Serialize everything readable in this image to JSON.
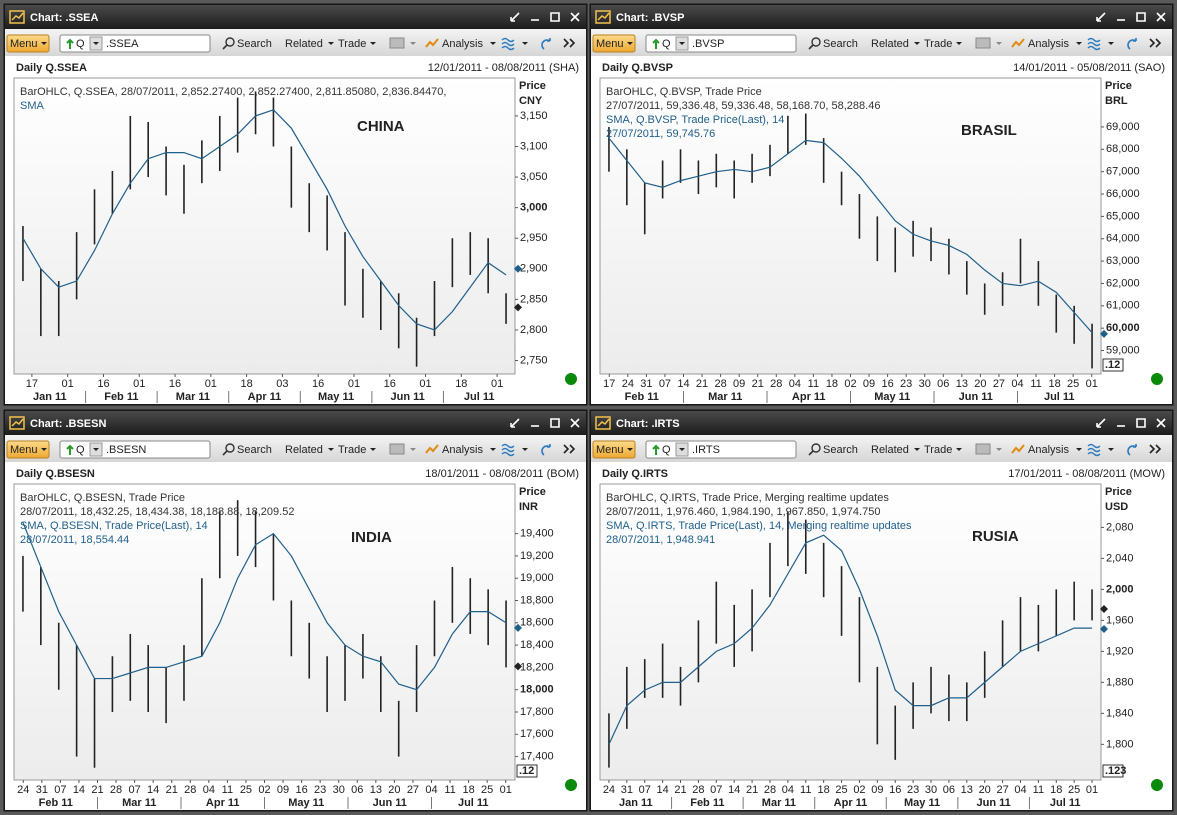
{
  "windows": [
    {
      "title": "Chart: .SSEA",
      "toolbar": {
        "menu": "Menu",
        "q": "Q",
        "symbol": ".SSEA",
        "search": "Search",
        "related": "Related",
        "trade": "Trade",
        "analysis": "Analysis"
      },
      "header": {
        "name": "Daily Q.SSEA",
        "range": "12/01/2011 - 08/08/2011 (SHA)"
      },
      "legend": [
        {
          "text": "BarOHLC, Q.SSEA, 28/07/2011, 2,852.27400, 2,852.27400, 2,811.85080, 2,836.84470,",
          "color": "#333333"
        },
        {
          "text": "SMA",
          "color": "#1f5f8a"
        }
      ],
      "annotation": "CHINA",
      "chart": {
        "type": "ohlc",
        "y_title": "Price",
        "currency": "CNY",
        "ylim": [
          2728,
          3212
        ],
        "yticks": [
          {
            "value": 2750,
            "label": "2,750"
          },
          {
            "value": 2800,
            "label": "2,800"
          },
          {
            "value": 2850,
            "label": "2,850"
          },
          {
            "value": 2900,
            "label": "2,900"
          },
          {
            "value": 2950,
            "label": "2,950"
          },
          {
            "value": 3000,
            "label": "3,000",
            "bold": true
          },
          {
            "value": 3050,
            "label": "3,050"
          },
          {
            "value": 3100,
            "label": "3,100"
          },
          {
            "value": 3150,
            "label": "3,150"
          }
        ],
        "day_labels": [
          "17",
          "01",
          "16",
          "01",
          "16",
          "01",
          "18",
          "03",
          "16",
          "01",
          "16",
          "01",
          "18",
          "01"
        ],
        "month_labels": [
          "Jan 11",
          "Feb 11",
          "Mar 11",
          "Apr 11",
          "May 11",
          "Jun 11",
          "Jul 11"
        ],
        "high": [
          2970,
          2900,
          2880,
          2960,
          3030,
          3060,
          3150,
          3140,
          3100,
          3070,
          3110,
          3150,
          3180,
          3190,
          3180,
          3100,
          3040,
          3020,
          2960,
          2900,
          2880,
          2860,
          2820,
          2880,
          2950,
          2960,
          2950,
          2860
        ],
        "low": [
          2880,
          2790,
          2790,
          2850,
          2940,
          2990,
          3030,
          3050,
          3020,
          2990,
          3040,
          3060,
          3090,
          3120,
          3100,
          3000,
          2960,
          2930,
          2840,
          2820,
          2800,
          2770,
          2740,
          2790,
          2870,
          2890,
          2860,
          2810
        ],
        "sma": [
          2950,
          2900,
          2870,
          2880,
          2930,
          2990,
          3040,
          3080,
          3090,
          3090,
          3080,
          3100,
          3120,
          3150,
          3160,
          3130,
          3080,
          3030,
          2970,
          2920,
          2880,
          2840,
          2810,
          2800,
          2830,
          2870,
          2910,
          2890
        ],
        "bar_color": "#222222",
        "sma_color": "#1f5f8a",
        "markers": [
          {
            "value": 2900,
            "color": "#1f5f8a"
          },
          {
            "value": 2836.8447,
            "color": "#222222"
          }
        ]
      }
    },
    {
      "title": "Chart: .BVSP",
      "toolbar": {
        "menu": "Menu",
        "q": "Q",
        "symbol": ".BVSP",
        "search": "Search",
        "related": "Related",
        "trade": "Trade",
        "analysis": "Analysis"
      },
      "header": {
        "name": "Daily Q.BVSP",
        "range": "14/01/2011 - 05/08/2011 (SAO)"
      },
      "legend": [
        {
          "text": "BarOHLC, Q.BVSP, Trade Price",
          "color": "#333333"
        },
        {
          "text": "27/07/2011, 59,336.48, 59,336.48, 58,168.70, 58,288.46",
          "color": "#333333"
        },
        {
          "text": "SMA, Q.BVSP, Trade Price(Last),  14",
          "color": "#1f5f8a"
        },
        {
          "text": "27/07/2011, 59,745.76",
          "color": "#1f5f8a"
        }
      ],
      "annotation": "BRASIL",
      "chart": {
        "type": "ohlc",
        "y_title": "Price",
        "currency": "BRL",
        "ylim": [
          57950,
          71190
        ],
        "yticks": [
          {
            "value": 59000,
            "label": "59,000"
          },
          {
            "value": 60000,
            "label": "60,000",
            "bold": true
          },
          {
            "value": 61000,
            "label": "61,000"
          },
          {
            "value": 62000,
            "label": "62,000"
          },
          {
            "value": 63000,
            "label": "63,000"
          },
          {
            "value": 64000,
            "label": "64,000"
          },
          {
            "value": 65000,
            "label": "65,000"
          },
          {
            "value": 66000,
            "label": "66,000"
          },
          {
            "value": 67000,
            "label": "67,000"
          },
          {
            "value": 68000,
            "label": "68,000"
          },
          {
            "value": 69000,
            "label": "69,000"
          }
        ],
        "day_labels": [
          "17",
          "24",
          "31",
          "07",
          "14",
          "21",
          "28",
          "09",
          "21",
          "28",
          "04",
          "11",
          "18",
          "02",
          "09",
          "16",
          "23",
          "30",
          "06",
          "13",
          "20",
          "27",
          "04",
          "11",
          "18",
          "25",
          "01"
        ],
        "month_labels": [
          "Feb 11",
          "Mar 11",
          "Apr 11",
          "May 11",
          "Jun 11",
          "Jul 11"
        ],
        "high": [
          69000,
          68000,
          66500,
          67500,
          68000,
          67500,
          67800,
          67500,
          67800,
          68200,
          69500,
          69600,
          68500,
          67000,
          66000,
          65000,
          64500,
          64800,
          64500,
          64000,
          63000,
          62000,
          62500,
          64000,
          63000,
          61500,
          61000,
          60200
        ],
        "low": [
          67000,
          65500,
          64200,
          65800,
          66500,
          66000,
          66300,
          65800,
          66500,
          66800,
          67800,
          68200,
          66500,
          65500,
          64000,
          63000,
          62500,
          63200,
          63000,
          62400,
          61500,
          60600,
          61000,
          62000,
          61000,
          59800,
          59300,
          58200
        ],
        "sma": [
          68500,
          67500,
          66500,
          66300,
          66600,
          66800,
          67000,
          67100,
          67000,
          67200,
          67800,
          68400,
          68300,
          67600,
          66800,
          65800,
          64800,
          64200,
          63900,
          63700,
          63300,
          62600,
          62000,
          61900,
          62100,
          61600,
          60700,
          59800
        ],
        "bar_color": "#222222",
        "sma_color": "#1f5f8a",
        "markers": [
          {
            "value": 59745.76,
            "color": "#1f5f8a"
          }
        ],
        "last_label": ".12"
      }
    },
    {
      "title": "Chart: .BSESN",
      "toolbar": {
        "menu": "Menu",
        "q": "Q",
        "symbol": ".BSESN",
        "search": "Search",
        "related": "Related",
        "trade": "Trade",
        "analysis": "Analysis"
      },
      "header": {
        "name": "Daily Q.BSESN",
        "range": "18/01/2011 - 08/08/2011 (BOM)"
      },
      "legend": [
        {
          "text": "BarOHLC, Q.BSESN, Trade Price",
          "color": "#333333"
        },
        {
          "text": "28/07/2011, 18,432.25, 18,434.38, 18,188.88, 18,209.52",
          "color": "#333333"
        },
        {
          "text": "SMA, Q.BSESN, Trade Price(Last),  14",
          "color": "#1f5f8a"
        },
        {
          "text": "28/07/2011, 18,554.44",
          "color": "#1f5f8a"
        }
      ],
      "annotation": "INDIA",
      "chart": {
        "type": "ohlc",
        "y_title": "Price",
        "currency": "INR",
        "ylim": [
          17190,
          19845
        ],
        "yticks": [
          {
            "value": 17400,
            "label": "17,400"
          },
          {
            "value": 17600,
            "label": "17,600"
          },
          {
            "value": 17800,
            "label": "17,800"
          },
          {
            "value": 18000,
            "label": "18,000",
            "bold": true
          },
          {
            "value": 18200,
            "label": "18,200"
          },
          {
            "value": 18400,
            "label": "18,400"
          },
          {
            "value": 18600,
            "label": "18,600"
          },
          {
            "value": 18800,
            "label": "18,800"
          },
          {
            "value": 19000,
            "label": "19,000"
          },
          {
            "value": 19200,
            "label": "19,200"
          },
          {
            "value": 19400,
            "label": "19,400"
          }
        ],
        "day_labels": [
          "24",
          "31",
          "07",
          "14",
          "21",
          "28",
          "07",
          "14",
          "21",
          "28",
          "04",
          "11",
          "25",
          "02",
          "09",
          "16",
          "23",
          "30",
          "06",
          "13",
          "20",
          "27",
          "04",
          "11",
          "18",
          "25",
          "01"
        ],
        "month_labels": [
          "Feb 11",
          "Mar 11",
          "Apr 11",
          "May 11",
          "Jun 11",
          "Jul 11"
        ],
        "high": [
          19200,
          19100,
          18600,
          18400,
          18100,
          18300,
          18500,
          18400,
          18200,
          18400,
          19000,
          19600,
          19700,
          19600,
          19400,
          18800,
          18600,
          18300,
          18400,
          18500,
          18300,
          17900,
          18400,
          18800,
          19100,
          19000,
          18900,
          18800
        ],
        "low": [
          18700,
          18400,
          18000,
          17400,
          17300,
          17800,
          17900,
          17800,
          17700,
          17900,
          18300,
          19000,
          19200,
          19100,
          18800,
          18300,
          18100,
          17800,
          17900,
          18100,
          17800,
          17400,
          17800,
          18300,
          18600,
          18500,
          18400,
          18200
        ],
        "sma": [
          19500,
          19100,
          18700,
          18400,
          18100,
          18100,
          18150,
          18200,
          18200,
          18250,
          18300,
          18600,
          19000,
          19300,
          19400,
          19200,
          18900,
          18600,
          18400,
          18300,
          18250,
          18050,
          18000,
          18200,
          18500,
          18700,
          18700,
          18600
        ],
        "bar_color": "#222222",
        "sma_color": "#1f5f8a",
        "markers": [
          {
            "value": 18554.44,
            "color": "#1f5f8a"
          },
          {
            "value": 18209.52,
            "color": "#222222"
          }
        ],
        "last_label": ".12"
      }
    },
    {
      "title": "Chart: .IRTS",
      "toolbar": {
        "menu": "Menu",
        "q": "Q",
        "symbol": ".IRTS",
        "search": "Search",
        "related": "Related",
        "trade": "Trade",
        "analysis": "Analysis"
      },
      "header": {
        "name": "Daily Q.IRTS",
        "range": "17/01/2011 - 08/08/2011 (MOW)"
      },
      "legend": [
        {
          "text": "BarOHLC, Q.IRTS, Trade Price,  Merging realtime updates",
          "color": "#333333"
        },
        {
          "text": "28/07/2011, 1,976.460, 1,984.190, 1,967.850, 1,974.750",
          "color": "#333333"
        },
        {
          "text": "SMA, Q.IRTS, Trade Price(Last),  14,  Merging realtime updates",
          "color": "#1f5f8a"
        },
        {
          "text": "28/07/2011, 1,948.941",
          "color": "#1f5f8a"
        }
      ],
      "annotation": "RUSIA",
      "chart": {
        "type": "ohlc",
        "y_title": "Price",
        "currency": "USD",
        "ylim": [
          1754,
          2136
        ],
        "yticks": [
          {
            "value": 1800,
            "label": "1,800"
          },
          {
            "value": 1840,
            "label": "1,840"
          },
          {
            "value": 1880,
            "label": "1,880"
          },
          {
            "value": 1920,
            "label": "1,920"
          },
          {
            "value": 1960,
            "label": "1,960"
          },
          {
            "value": 2000,
            "label": "2,000",
            "bold": true
          },
          {
            "value": 2040,
            "label": "2,040"
          },
          {
            "value": 2080,
            "label": "2,080"
          }
        ],
        "day_labels": [
          "24",
          "31",
          "07",
          "14",
          "21",
          "28",
          "07",
          "14",
          "21",
          "28",
          "04",
          "11",
          "18",
          "25",
          "02",
          "09",
          "16",
          "23",
          "30",
          "06",
          "13",
          "20",
          "27",
          "04",
          "11",
          "18",
          "25",
          "01"
        ],
        "month_labels": [
          "Jan 11",
          "Feb 11",
          "Mar 11",
          "Apr 11",
          "May 11",
          "Jun 11",
          "Jul 11"
        ],
        "high": [
          1840,
          1900,
          1910,
          1930,
          1900,
          1960,
          2010,
          1980,
          2000,
          2060,
          2100,
          2090,
          2060,
          2030,
          1990,
          1900,
          1850,
          1880,
          1900,
          1890,
          1880,
          1920,
          1960,
          1990,
          1980,
          2000,
          2010,
          2000
        ],
        "low": [
          1770,
          1820,
          1860,
          1860,
          1850,
          1880,
          1930,
          1900,
          1920,
          1990,
          2030,
          2020,
          1990,
          1940,
          1880,
          1800,
          1780,
          1820,
          1840,
          1830,
          1830,
          1860,
          1900,
          1920,
          1920,
          1940,
          1960,
          1960
        ],
        "sma": [
          1800,
          1850,
          1870,
          1880,
          1880,
          1900,
          1920,
          1930,
          1950,
          1980,
          2020,
          2060,
          2070,
          2050,
          2000,
          1940,
          1870,
          1850,
          1850,
          1860,
          1860,
          1880,
          1900,
          1920,
          1930,
          1940,
          1950,
          1950
        ],
        "bar_color": "#222222",
        "sma_color": "#1f5f8a",
        "markers": [
          {
            "value": 1974.75,
            "color": "#222222"
          },
          {
            "value": 1948.941,
            "color": "#1f5f8a"
          }
        ],
        "last_label": ".123"
      }
    }
  ]
}
